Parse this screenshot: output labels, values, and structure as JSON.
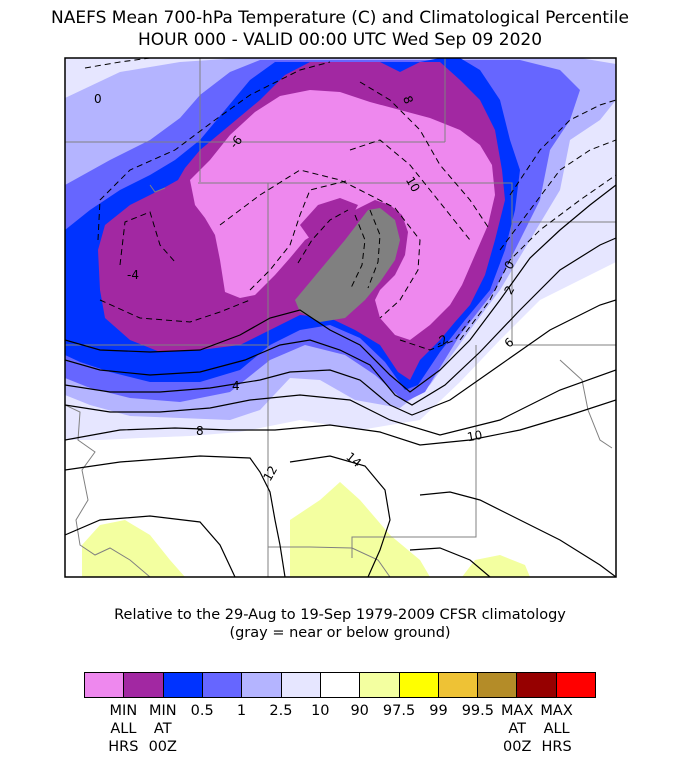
{
  "title": {
    "line1": "NAEFS Mean 700-hPa Temperature (C) and Climatological Percentile",
    "line2": "HOUR 000 - VALID 00:00 UTC Wed Sep 09 2020"
  },
  "contour_labels": [
    "0",
    "8",
    "-6",
    "10",
    "-4",
    "0",
    "2",
    "-2",
    "6",
    "4",
    "8",
    "10",
    "12",
    "14"
  ],
  "caption": {
    "line1": "Relative to the 29-Aug to 19-Sep 1979-2009 CFSR climatology",
    "line2": "(gray = near or below ground)"
  },
  "legend": {
    "colors": [
      "#ee88ee",
      "#a228a2",
      "#0033ff",
      "#6666ff",
      "#b4b4ff",
      "#e6e6ff",
      "#ffffff",
      "#f3ffa0",
      "#ffff00",
      "#eec235",
      "#b48c28",
      "#960000",
      "#ff0000"
    ],
    "labels": [
      "MIN\nALL\nHRS",
      "MIN\nAT\n00Z",
      "0.5",
      "1",
      "2.5",
      "10",
      "90",
      "97.5",
      "99",
      "99.5",
      "MAX\nAT\n00Z",
      "MAX\nALL\nHRS"
    ]
  },
  "colors": {
    "min_all": "#ee88ee",
    "min_00z": "#a228a2",
    "p05": "#0033ff",
    "p1": "#6666ff",
    "p25": "#b4b4ff",
    "p10": "#e6e6ff",
    "p90": "#ffffff",
    "p975": "#f3ffa0",
    "ground": "#808080"
  }
}
